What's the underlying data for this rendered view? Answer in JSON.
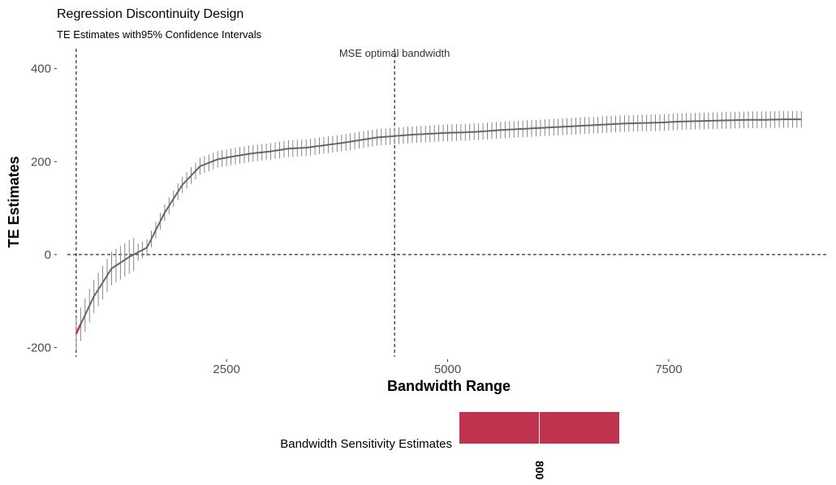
{
  "chart_data": {
    "type": "line",
    "title": "Regression Discontinuity Design",
    "subtitle": "TE Estimates with95% Confidence Intervals",
    "xlabel": "Bandwidth Range",
    "ylabel": "TE Estimates",
    "xlim": [
      700,
      9300
    ],
    "ylim": [
      -220,
      450
    ],
    "x_ticks": [
      2500,
      5000,
      7500
    ],
    "x_tick_labels": [
      "2500",
      "5000",
      "7500"
    ],
    "y_ticks": [
      -200,
      0,
      200,
      400
    ],
    "y_tick_labels": [
      "-200",
      "0",
      "200",
      "400"
    ],
    "reference_lines": {
      "vertical": [
        800,
        4400
      ],
      "horizontal": [
        0
      ]
    },
    "annotation": "MSE optimal bandwidth",
    "grid": false,
    "series": [
      {
        "x": [
          800,
          1000,
          1200,
          1400,
          1600,
          1800,
          2000,
          2200,
          2400,
          2600,
          2800,
          3000,
          3200,
          3400,
          3600,
          3800,
          4000,
          4200,
          4400,
          4600,
          4800,
          5000,
          5200,
          5400,
          5600,
          5800,
          6000,
          6200,
          6400,
          6600,
          6800,
          7000,
          7200,
          7400,
          7600,
          7800,
          8000,
          8200,
          8400,
          8600,
          8800,
          9000
        ],
        "y": [
          -170,
          -90,
          -30,
          -5,
          15,
          90,
          150,
          190,
          205,
          212,
          218,
          222,
          228,
          230,
          235,
          240,
          246,
          252,
          255,
          258,
          260,
          262,
          263,
          265,
          268,
          270,
          272,
          274,
          276,
          278,
          280,
          282,
          283,
          284,
          286,
          287,
          288,
          289,
          290,
          290,
          291,
          291
        ],
        "ci_half_width": 18,
        "color": "#666666"
      }
    ],
    "highlight_segment": {
      "x": [
        800,
        850
      ],
      "color": "#c0334f"
    },
    "legend": {
      "title": "Bandwidth Sensitivity Estimates",
      "placement": "bottom",
      "tick_label": "800",
      "color": "#c0334f"
    }
  }
}
